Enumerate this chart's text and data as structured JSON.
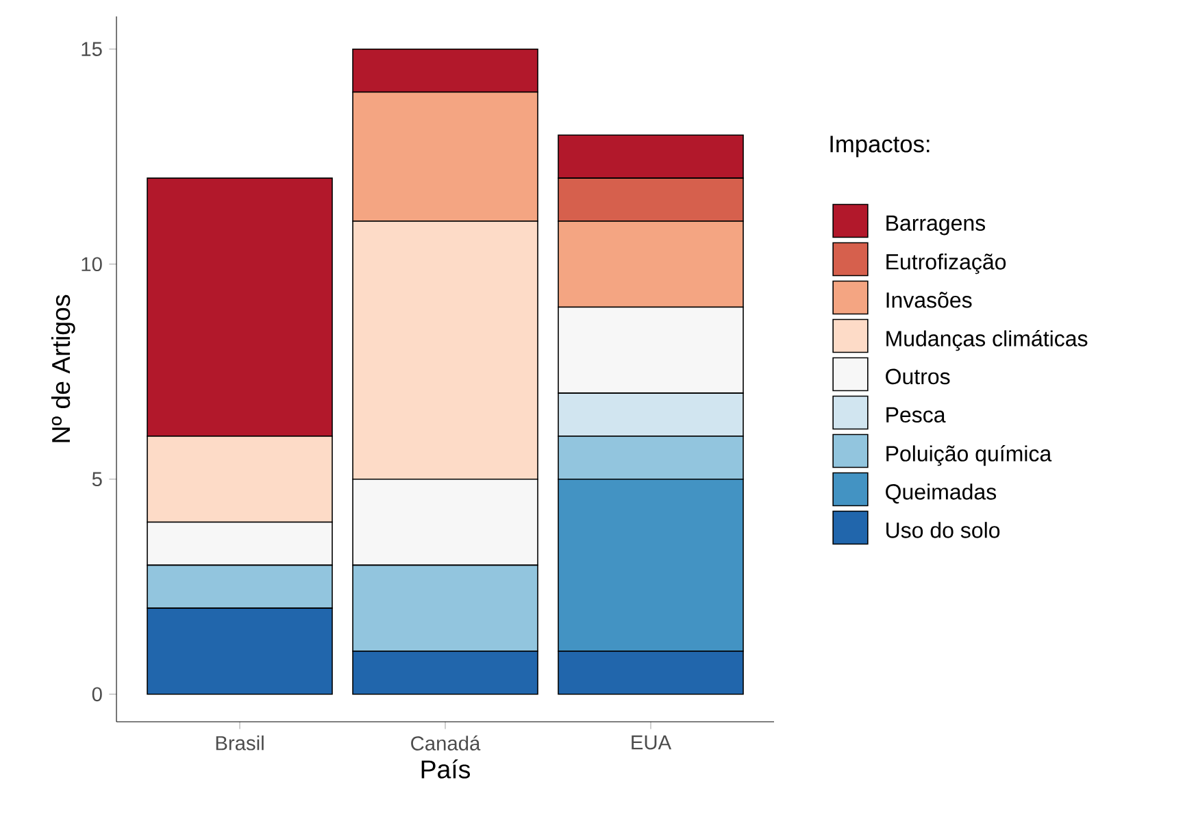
{
  "chart_data": {
    "type": "bar",
    "stacked": true,
    "categories": [
      "Brasil",
      "Canadá",
      "EUA"
    ],
    "xlabel": "País",
    "ylabel": "Nº de Artigos",
    "legend_title": "Impactos:",
    "legend": "right",
    "ylim": [
      -0.64,
      15.76
    ],
    "yticks": [
      0,
      5,
      10,
      15
    ],
    "series": [
      {
        "name": "Uso do solo",
        "color": "#2166ac",
        "values": [
          2,
          1,
          1
        ]
      },
      {
        "name": "Queimadas",
        "color": "#4393c3",
        "values": [
          0,
          0,
          4
        ]
      },
      {
        "name": "Poluição química",
        "color": "#92c5de",
        "values": [
          1,
          2,
          1
        ]
      },
      {
        "name": "Pesca",
        "color": "#d1e5f0",
        "values": [
          0,
          0,
          1
        ]
      },
      {
        "name": "Outros",
        "color": "#f7f7f7",
        "values": [
          1,
          2,
          2
        ]
      },
      {
        "name": "Mudanças climáticas",
        "color": "#fddbc7",
        "values": [
          2,
          6,
          0
        ]
      },
      {
        "name": "Invasões",
        "color": "#f4a582",
        "values": [
          0,
          3,
          2
        ]
      },
      {
        "name": "Eutrofização",
        "color": "#d6604d",
        "values": [
          0,
          0,
          1
        ]
      },
      {
        "name": "Barragens",
        "color": "#b2182b",
        "values": [
          6,
          1,
          1
        ]
      }
    ]
  }
}
